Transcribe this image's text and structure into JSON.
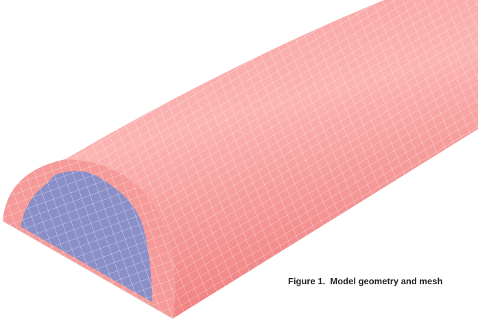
{
  "figure": {
    "caption": "Figure 1.  Model geometry and mesh"
  }
}
